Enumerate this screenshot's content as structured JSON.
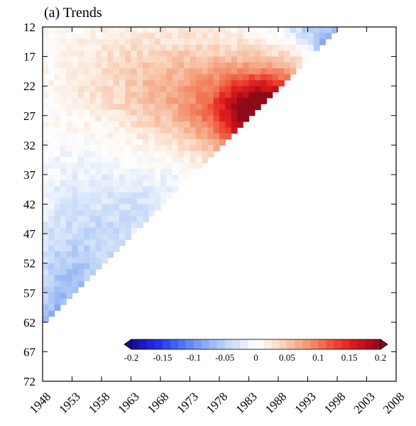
{
  "chart_data": {
    "type": "heatmap",
    "title": "(a) Trends",
    "xlabel": "",
    "ylabel": "",
    "x_ticks": [
      "1948",
      "1953",
      "1958",
      "1963",
      "1968",
      "1973",
      "1978",
      "1983",
      "1988",
      "1993",
      "1998",
      "2003",
      "2008"
    ],
    "y_ticks": [
      "12",
      "17",
      "22",
      "27",
      "32",
      "37",
      "42",
      "47",
      "52",
      "57",
      "62",
      "67",
      "72"
    ],
    "x_range": [
      1948,
      2008
    ],
    "y_range": [
      12,
      72
    ],
    "colorbar": {
      "ticks": [
        "-0.2",
        "-0.15",
        "-0.1",
        "-0.05",
        "0",
        "0.05",
        "0.1",
        "0.15",
        "0.2"
      ],
      "range": [
        -0.2,
        0.2
      ],
      "colors_negative": [
        "#1a0d8f",
        "#1f1ad0",
        "#2434e8",
        "#3a5cf0",
        "#5a82f2",
        "#7fa2f4",
        "#a1bff6",
        "#c4d8f8",
        "#e3ecfb"
      ],
      "colors_positive": [
        "#fbe9dc",
        "#f8c8ad",
        "#f5a482",
        "#f27a59",
        "#ef4a36",
        "#e0201e",
        "#c0101a",
        "#8f0a1a"
      ]
    },
    "grid": false,
    "legend": "bottom-right"
  }
}
